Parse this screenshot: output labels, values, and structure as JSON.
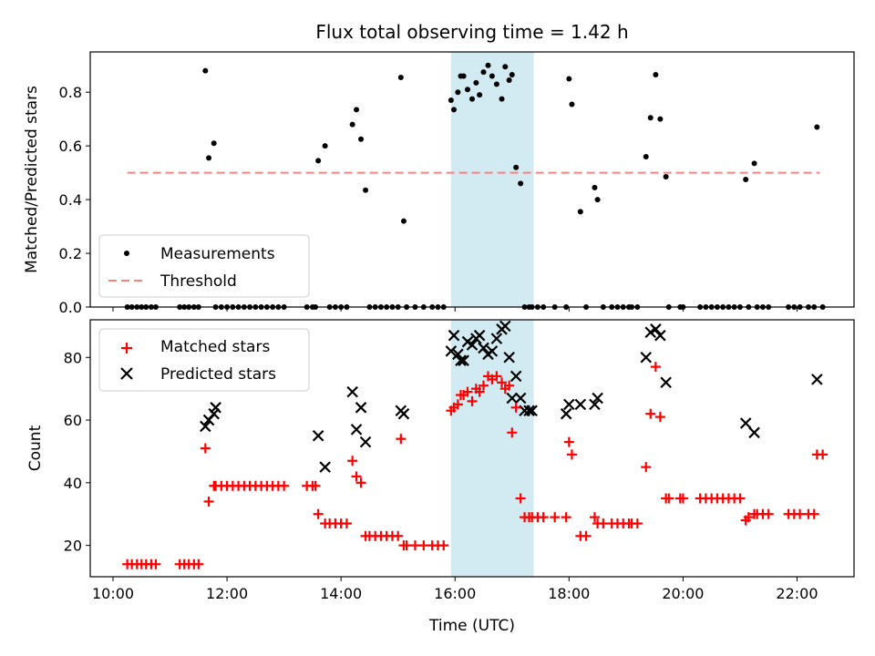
{
  "chart_data": {
    "title": "Flux total observing time = 1.42 h",
    "xlabel": "Time (UTC)",
    "x_ticks": [
      "10:00",
      "12:00",
      "14:00",
      "16:00",
      "18:00",
      "20:00",
      "22:00"
    ],
    "x_tick_hours": [
      10,
      12,
      14,
      16,
      18,
      20,
      22
    ],
    "xlim_hours": [
      9.6,
      23.0
    ],
    "highlight_span_hours": [
      15.93,
      17.38
    ],
    "colors": {
      "highlight": "#add8e6",
      "matched": "#ff0000",
      "predicted": "#000000",
      "threshold": "#ff7f7f",
      "measurement": "#000000"
    },
    "panels": [
      {
        "type": "scatter",
        "ylabel": "Matched/Predicted stars",
        "ylim": [
          0,
          0.95
        ],
        "y_ticks": [
          0.0,
          0.2,
          0.4,
          0.6,
          0.8
        ],
        "y_tick_labels": [
          "0.0",
          "0.2",
          "0.4",
          "0.6",
          "0.8"
        ],
        "legend": {
          "position": "lower-left",
          "entries": [
            "Measurements",
            "Threshold"
          ]
        },
        "threshold": {
          "name": "Threshold",
          "value": 0.5,
          "x_range_hours": [
            10.25,
            22.4
          ]
        },
        "series": [
          {
            "name": "Measurements",
            "x_hours": [
              10.25,
              10.33,
              10.42,
              10.5,
              10.58,
              10.67,
              10.75,
              11.17,
              11.25,
              11.33,
              11.42,
              11.5,
              11.62,
              11.68,
              11.77,
              11.8,
              11.9,
              12.0,
              12.1,
              12.2,
              12.3,
              12.4,
              12.5,
              12.6,
              12.7,
              12.8,
              12.9,
              13.0,
              13.4,
              13.5,
              13.55,
              13.6,
              13.72,
              13.8,
              13.9,
              14.0,
              14.1,
              14.2,
              14.27,
              14.35,
              14.43,
              14.5,
              14.6,
              14.7,
              14.8,
              14.9,
              15.0,
              15.05,
              15.1,
              15.15,
              15.3,
              15.45,
              15.6,
              15.7,
              15.8,
              15.93,
              15.98,
              16.05,
              16.1,
              16.15,
              16.22,
              16.3,
              16.37,
              16.43,
              16.5,
              16.58,
              16.65,
              16.73,
              16.82,
              16.88,
              16.95,
              17.0,
              17.07,
              17.15,
              17.22,
              17.3,
              17.35,
              17.45,
              17.55,
              17.75,
              17.95,
              18.0,
              18.05,
              18.2,
              18.3,
              18.45,
              18.5,
              18.6,
              18.75,
              18.85,
              18.95,
              19.05,
              19.1,
              19.2,
              19.35,
              19.43,
              19.52,
              19.6,
              19.7,
              19.75,
              19.95,
              20.0,
              20.3,
              20.4,
              20.5,
              20.6,
              20.7,
              20.8,
              20.9,
              21.0,
              21.1,
              21.15,
              21.25,
              21.3,
              21.4,
              21.5,
              21.85,
              21.95,
              22.05,
              22.2,
              22.3,
              22.35,
              22.45
            ],
            "y": [
              0,
              0,
              0,
              0,
              0,
              0,
              0,
              0,
              0,
              0,
              0,
              0,
              0.88,
              0.555,
              0.61,
              0,
              0,
              0,
              0,
              0,
              0,
              0,
              0,
              0,
              0,
              0,
              0,
              0,
              0,
              0,
              0,
              0.545,
              0.6,
              0,
              0,
              0,
              0,
              0.68,
              0.735,
              0.625,
              0.435,
              0,
              0,
              0,
              0,
              0,
              0,
              0.855,
              0.32,
              0,
              0,
              0,
              0,
              0,
              0,
              0.77,
              0.735,
              0.8,
              0.86,
              0.86,
              0.81,
              0.775,
              0.835,
              0.79,
              0.875,
              0.9,
              0.86,
              0.83,
              0.775,
              0.895,
              0.845,
              0.865,
              0.52,
              0.46,
              0,
              0,
              0,
              0,
              0,
              0,
              0,
              0.85,
              0.755,
              0.355,
              0,
              0.445,
              0.4,
              0,
              0,
              0,
              0,
              0,
              0,
              0,
              0.56,
              0.705,
              0.865,
              0.7,
              0.485,
              0,
              0,
              0,
              0,
              0,
              0,
              0,
              0,
              0,
              0,
              0,
              0.475,
              0,
              0.535,
              0,
              0,
              0,
              0,
              0,
              0,
              0,
              0,
              0.67,
              0
            ]
          }
        ]
      },
      {
        "type": "scatter",
        "ylabel": "Count",
        "ylim": [
          10,
          92
        ],
        "y_ticks": [
          20,
          40,
          60,
          80
        ],
        "y_tick_labels": [
          "20",
          "40",
          "60",
          "80"
        ],
        "legend": {
          "position": "top-left",
          "entries": [
            "Matched stars",
            "Predicted stars"
          ]
        },
        "series": [
          {
            "name": "Matched stars",
            "x_hours": [
              10.25,
              10.33,
              10.42,
              10.5,
              10.58,
              10.67,
              10.75,
              11.17,
              11.25,
              11.33,
              11.42,
              11.5,
              11.62,
              11.68,
              11.77,
              11.8,
              11.9,
              12.0,
              12.1,
              12.2,
              12.3,
              12.4,
              12.5,
              12.6,
              12.7,
              12.8,
              12.9,
              13.0,
              13.4,
              13.5,
              13.55,
              13.6,
              13.72,
              13.8,
              13.9,
              14.0,
              14.1,
              14.2,
              14.27,
              14.35,
              14.43,
              14.5,
              14.6,
              14.7,
              14.8,
              14.9,
              15.0,
              15.05,
              15.1,
              15.15,
              15.3,
              15.45,
              15.6,
              15.7,
              15.8,
              15.93,
              15.98,
              16.05,
              16.1,
              16.15,
              16.22,
              16.3,
              16.37,
              16.43,
              16.5,
              16.58,
              16.65,
              16.73,
              16.82,
              16.88,
              16.95,
              17.0,
              17.07,
              17.15,
              17.22,
              17.3,
              17.35,
              17.45,
              17.55,
              17.75,
              17.95,
              18.0,
              18.05,
              18.2,
              18.3,
              18.45,
              18.5,
              18.6,
              18.75,
              18.85,
              18.95,
              19.05,
              19.1,
              19.2,
              19.35,
              19.43,
              19.52,
              19.6,
              19.7,
              19.75,
              19.95,
              20.0,
              20.3,
              20.4,
              20.5,
              20.6,
              20.7,
              20.8,
              20.9,
              21.0,
              21.1,
              21.15,
              21.25,
              21.3,
              21.4,
              21.5,
              21.85,
              21.95,
              22.05,
              22.2,
              22.3,
              22.35,
              22.45
            ],
            "y": [
              14,
              14,
              14,
              14,
              14,
              14,
              14,
              14,
              14,
              14,
              14,
              14,
              51,
              34,
              39,
              39,
              39,
              39,
              39,
              39,
              39,
              39,
              39,
              39,
              39,
              39,
              39,
              39,
              39,
              39,
              39,
              30,
              27,
              27,
              27,
              27,
              27,
              47,
              42,
              40,
              23,
              23,
              23,
              23,
              23,
              23,
              23,
              54,
              20,
              20,
              20,
              20,
              20,
              20,
              20,
              63,
              64,
              65,
              68,
              68,
              69,
              66,
              70,
              69,
              71,
              74,
              73,
              74,
              72,
              70,
              71,
              56,
              64,
              35,
              29,
              29,
              29,
              29,
              29,
              29,
              29,
              53,
              49,
              23,
              23,
              29,
              27,
              27,
              27,
              27,
              27,
              27,
              27,
              27,
              45,
              62,
              77,
              61,
              35,
              35,
              35,
              35,
              35,
              35,
              35,
              35,
              35,
              35,
              35,
              35,
              28,
              29,
              30,
              30,
              30,
              30,
              30,
              30,
              30,
              30,
              30,
              49,
              49
            ]
          },
          {
            "name": "Predicted stars",
            "x_hours": [
              11.62,
              11.68,
              11.77,
              11.8,
              13.6,
              13.72,
              14.2,
              14.27,
              14.35,
              14.43,
              15.05,
              15.1,
              15.93,
              15.98,
              16.05,
              16.1,
              16.15,
              16.22,
              16.3,
              16.37,
              16.43,
              16.5,
              16.58,
              16.65,
              16.73,
              16.82,
              16.88,
              16.95,
              17.0,
              17.07,
              17.15,
              17.22,
              17.3,
              17.35,
              17.95,
              18.0,
              18.2,
              18.45,
              18.5,
              19.35,
              19.43,
              19.52,
              19.6,
              19.7,
              21.1,
              21.25,
              22.35
            ],
            "y": [
              58,
              60,
              62,
              64,
              55,
              45,
              69,
              57,
              64,
              53,
              63,
              62,
              82,
              87,
              81,
              79,
              79,
              85,
              84,
              86,
              87,
              83,
              81,
              82,
              86,
              89,
              90,
              80,
              67,
              74,
              67,
              63,
              63,
              63,
              62,
              65,
              65,
              65,
              67,
              80,
              88,
              89,
              87,
              72,
              59,
              56,
              73
            ]
          }
        ]
      }
    ]
  }
}
